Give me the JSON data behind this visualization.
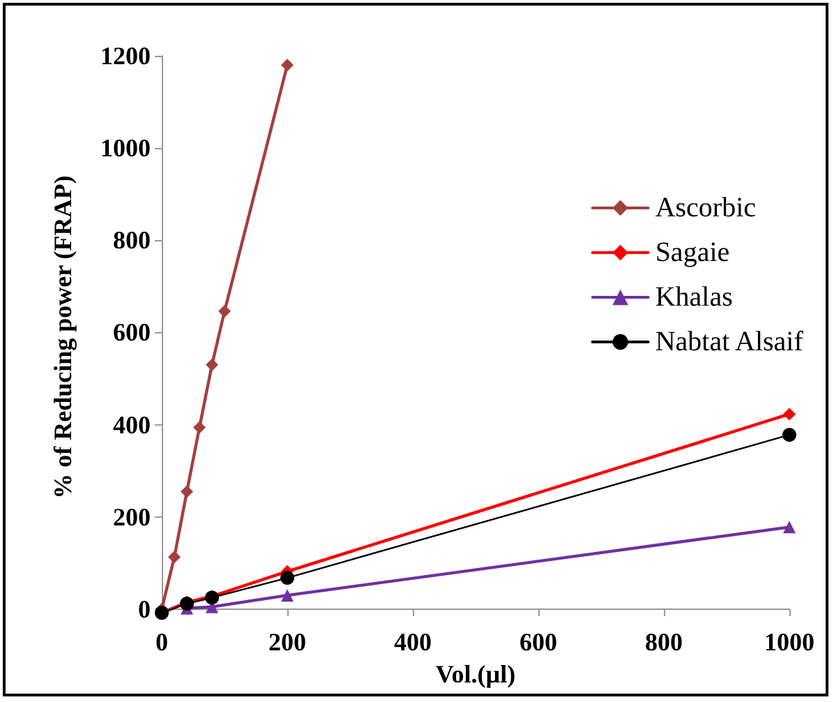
{
  "chart_data": {
    "type": "line",
    "xlabel": "Vol.(µl)",
    "ylabel": "% of Reducing power (FRAP)",
    "xlim": [
      0,
      1000
    ],
    "xticks": [
      0,
      200,
      400,
      600,
      800,
      1000
    ],
    "ylim": [
      -20,
      1200
    ],
    "yticks": [
      0,
      200,
      400,
      600,
      800,
      1000,
      1200
    ],
    "grid": false,
    "legend": "right",
    "series": [
      {
        "name": "Ascorbic",
        "color": "#a3403d",
        "marker": "diamond",
        "x": [
          0,
          20,
          40,
          60,
          80,
          100,
          200
        ],
        "values": [
          0,
          113,
          255,
          394,
          530,
          646,
          1180
        ]
      },
      {
        "name": "Sagaie",
        "color": "#ff0000",
        "marker": "diamond",
        "x": [
          0,
          40,
          80,
          200,
          1000
        ],
        "values": [
          -8,
          15,
          28,
          82,
          423
        ]
      },
      {
        "name": "Khalas",
        "color": "#7030a0",
        "marker": "triangle",
        "x": [
          40,
          80,
          200,
          1000
        ],
        "values": [
          2,
          5,
          30,
          178
        ]
      },
      {
        "name": "Nabtat Alsaif",
        "color": "#000000",
        "marker": "circle",
        "x": [
          0,
          40,
          80,
          200,
          1000
        ],
        "values": [
          -8,
          12,
          25,
          68,
          378
        ]
      }
    ]
  }
}
